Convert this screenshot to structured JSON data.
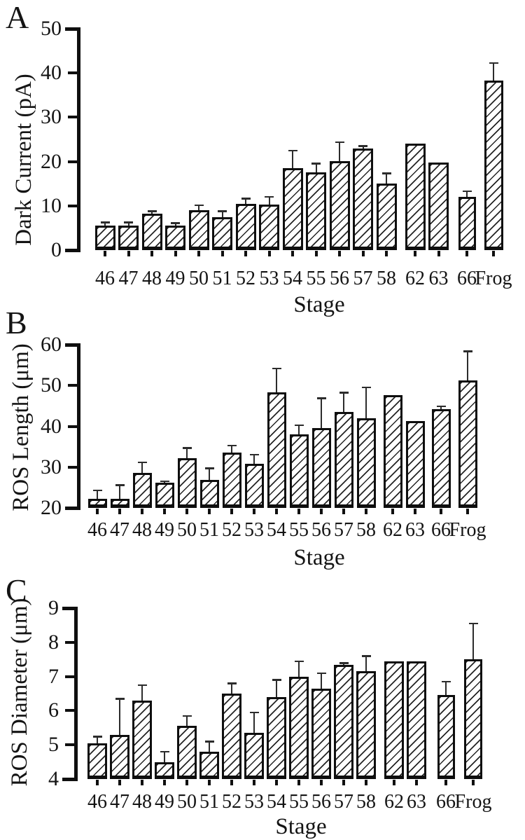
{
  "figure": {
    "background": "#ffffff",
    "ink_color": "#111111",
    "bar_fill": "white with diagonal hatch (///)",
    "panels_count": 3
  },
  "chart_data": [
    {
      "type": "bar",
      "panel_letter": "A",
      "title": "",
      "ylabel": "Dark Current (pA)",
      "xlabel": "Stage",
      "ylim": [
        0,
        50
      ],
      "yticks": [
        0,
        10,
        20,
        30,
        40,
        50
      ],
      "grid": false,
      "legend": "none",
      "error_bars": "upper only",
      "categories": [
        "46",
        "47",
        "48",
        "49",
        "50",
        "51",
        "52",
        "53",
        "54",
        "55",
        "56",
        "57",
        "58",
        "62",
        "63",
        "66",
        "Frog"
      ],
      "values": [
        5.5,
        5.6,
        8.3,
        5.6,
        9.0,
        7.4,
        10.4,
        10.3,
        18.5,
        17.6,
        20.1,
        23.0,
        15.0,
        24.0,
        19.7,
        12.0,
        38.3
      ],
      "errors": [
        0.8,
        0.7,
        0.5,
        0.5,
        1.2,
        1.4,
        1.3,
        1.8,
        4.0,
        2.0,
        4.3,
        0.5,
        2.4,
        0,
        0,
        1.3,
        4.0
      ]
    },
    {
      "type": "bar",
      "panel_letter": "B",
      "title": "",
      "ylabel": "ROS Length (μm)",
      "xlabel": "Stage",
      "ylim": [
        20,
        60
      ],
      "yticks": [
        20,
        30,
        40,
        50,
        60
      ],
      "grid": false,
      "legend": "none",
      "error_bars": "upper only",
      "categories": [
        "46",
        "47",
        "48",
        "49",
        "50",
        "51",
        "52",
        "53",
        "54",
        "55",
        "56",
        "57",
        "58",
        "62",
        "63",
        "66",
        "Frog"
      ],
      "values": [
        22.3,
        22.3,
        28.5,
        26.1,
        32.2,
        26.9,
        33.5,
        30.9,
        48.4,
        38.1,
        39.5,
        43.6,
        42.0,
        47.7,
        41.3,
        44.2,
        51.2
      ],
      "errors": [
        2.0,
        3.3,
        2.7,
        0.5,
        2.5,
        2.8,
        1.8,
        2.2,
        5.8,
        2.2,
        7.4,
        4.7,
        7.6,
        0,
        0,
        0.7,
        7.2
      ]
    },
    {
      "type": "bar",
      "panel_letter": "C",
      "title": "",
      "ylabel": "ROS Diameter (μm)",
      "xlabel": "Stage",
      "ylim": [
        4,
        9
      ],
      "yticks": [
        4,
        5,
        6,
        7,
        8,
        9
      ],
      "grid": false,
      "legend": "none",
      "error_bars": "upper only",
      "categories": [
        "46",
        "47",
        "48",
        "49",
        "50",
        "51",
        "52",
        "53",
        "54",
        "55",
        "56",
        "57",
        "58",
        "62",
        "63",
        "66",
        "Frog"
      ],
      "values": [
        5.05,
        5.3,
        6.3,
        4.5,
        5.55,
        4.8,
        6.5,
        5.35,
        6.4,
        7.0,
        6.65,
        7.35,
        7.15,
        7.45,
        7.45,
        6.45,
        7.5
      ],
      "errors": [
        0.2,
        1.05,
        0.45,
        0.3,
        0.3,
        0.3,
        0.3,
        0.6,
        0.5,
        0.45,
        0.45,
        0.05,
        0.45,
        0,
        0,
        0.4,
        1.05
      ]
    }
  ]
}
